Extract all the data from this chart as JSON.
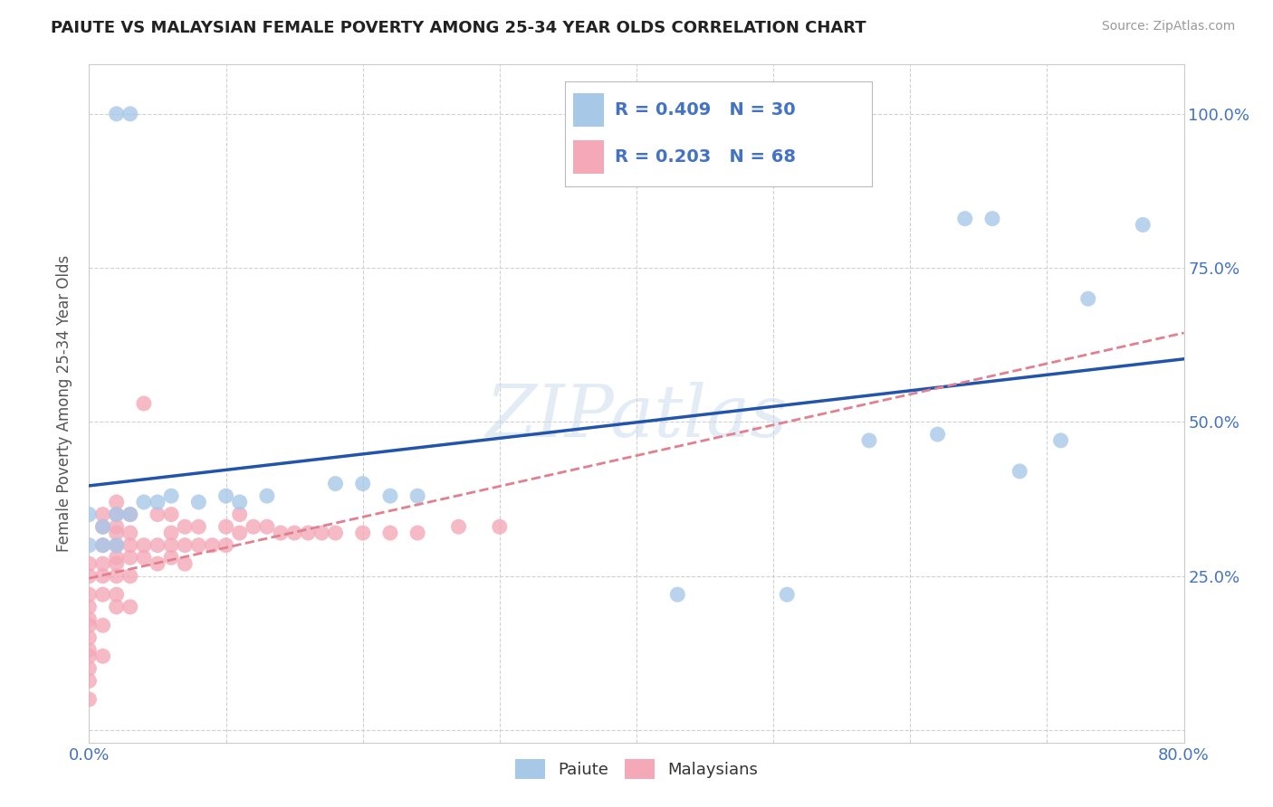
{
  "title": "PAIUTE VS MALAYSIAN FEMALE POVERTY AMONG 25-34 YEAR OLDS CORRELATION CHART",
  "source": "Source: ZipAtlas.com",
  "ylabel": "Female Poverty Among 25-34 Year Olds",
  "xlim": [
    0.0,
    0.8
  ],
  "ylim": [
    -0.02,
    1.08
  ],
  "xtick_positions": [
    0.0,
    0.1,
    0.2,
    0.3,
    0.4,
    0.5,
    0.6,
    0.7,
    0.8
  ],
  "xticklabels": [
    "0.0%",
    "",
    "",
    "",
    "",
    "",
    "",
    "",
    "80.0%"
  ],
  "ytick_positions": [
    0.0,
    0.25,
    0.5,
    0.75,
    1.0
  ],
  "yticklabels_right": [
    "",
    "25.0%",
    "50.0%",
    "75.0%",
    "100.0%"
  ],
  "paiute_R": 0.409,
  "paiute_N": 30,
  "malaysian_R": 0.203,
  "malaysian_N": 68,
  "legend_color": "#4472c4",
  "paiute_color": "#a8c8e8",
  "malaysian_color": "#f4a8b8",
  "trendline_paiute_color": "#2255aa",
  "trendline_malaysian_color": "#e08090",
  "watermark": "ZIPatlas",
  "background_color": "#ffffff",
  "grid_color": "#cccccc",
  "paiute_x": [
    0.02,
    0.03,
    0.0,
    0.0,
    0.01,
    0.01,
    0.02,
    0.02,
    0.03,
    0.04,
    0.05,
    0.06,
    0.08,
    0.1,
    0.11,
    0.13,
    0.18,
    0.2,
    0.22,
    0.24,
    0.43,
    0.51,
    0.57,
    0.62,
    0.64,
    0.66,
    0.68,
    0.71,
    0.73,
    0.77
  ],
  "paiute_y": [
    1.0,
    1.0,
    0.35,
    0.3,
    0.33,
    0.3,
    0.3,
    0.35,
    0.35,
    0.37,
    0.37,
    0.38,
    0.37,
    0.38,
    0.37,
    0.38,
    0.4,
    0.4,
    0.38,
    0.38,
    0.22,
    0.22,
    0.47,
    0.48,
    0.83,
    0.83,
    0.42,
    0.47,
    0.7,
    0.82
  ],
  "malaysian_x": [
    0.0,
    0.0,
    0.0,
    0.0,
    0.0,
    0.0,
    0.0,
    0.0,
    0.0,
    0.0,
    0.0,
    0.0,
    0.01,
    0.01,
    0.01,
    0.01,
    0.01,
    0.01,
    0.01,
    0.01,
    0.02,
    0.02,
    0.02,
    0.02,
    0.02,
    0.02,
    0.02,
    0.02,
    0.02,
    0.02,
    0.03,
    0.03,
    0.03,
    0.03,
    0.03,
    0.03,
    0.04,
    0.04,
    0.04,
    0.05,
    0.05,
    0.05,
    0.06,
    0.06,
    0.06,
    0.06,
    0.07,
    0.07,
    0.07,
    0.08,
    0.08,
    0.09,
    0.1,
    0.1,
    0.11,
    0.11,
    0.12,
    0.13,
    0.14,
    0.15,
    0.16,
    0.17,
    0.18,
    0.2,
    0.22,
    0.24,
    0.27,
    0.3
  ],
  "malaysian_y": [
    0.05,
    0.08,
    0.1,
    0.12,
    0.13,
    0.15,
    0.17,
    0.18,
    0.2,
    0.22,
    0.25,
    0.27,
    0.12,
    0.17,
    0.22,
    0.25,
    0.27,
    0.3,
    0.33,
    0.35,
    0.2,
    0.22,
    0.25,
    0.27,
    0.28,
    0.3,
    0.32,
    0.33,
    0.35,
    0.37,
    0.2,
    0.25,
    0.28,
    0.3,
    0.32,
    0.35,
    0.28,
    0.3,
    0.53,
    0.27,
    0.3,
    0.35,
    0.28,
    0.3,
    0.32,
    0.35,
    0.27,
    0.3,
    0.33,
    0.3,
    0.33,
    0.3,
    0.3,
    0.33,
    0.32,
    0.35,
    0.33,
    0.33,
    0.32,
    0.32,
    0.32,
    0.32,
    0.32,
    0.32,
    0.32,
    0.32,
    0.33,
    0.33
  ]
}
